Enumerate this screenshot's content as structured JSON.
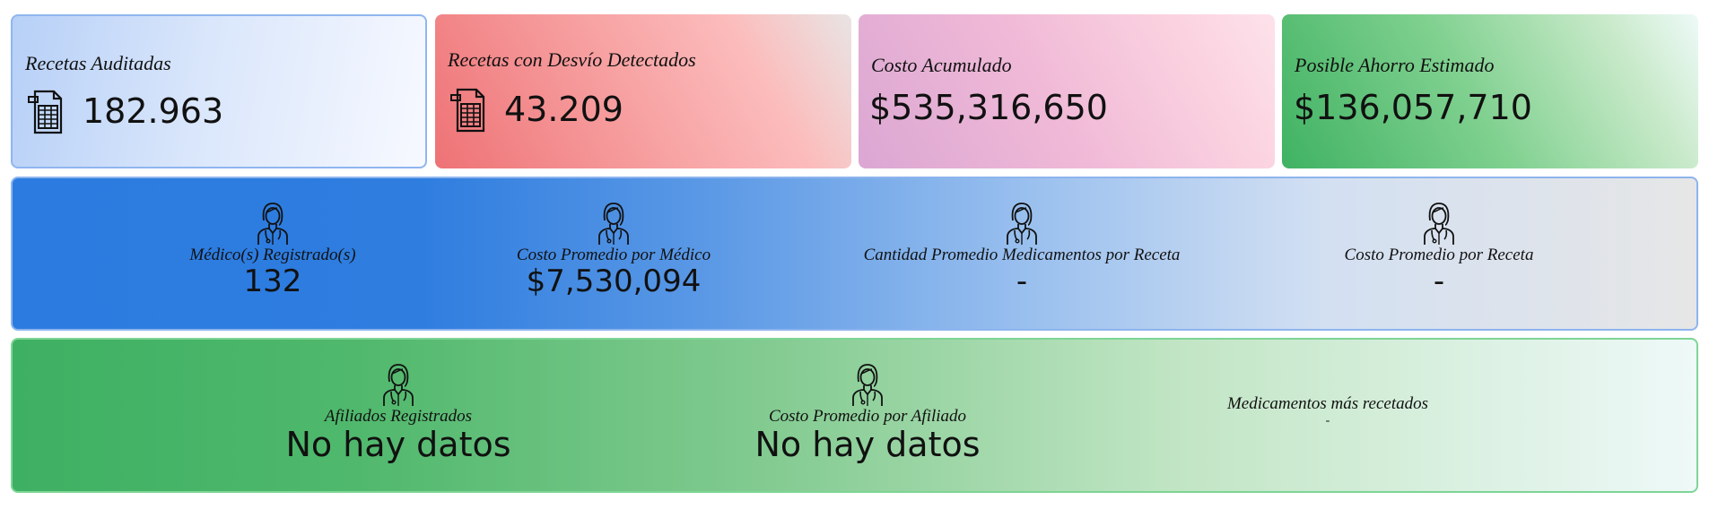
{
  "cards": [
    {
      "title": "Recetas Auditadas",
      "value": "182.963",
      "icon": "spreadsheet-doc-icon"
    },
    {
      "title": "Recetas con Desvío Detectados",
      "value": "43.209",
      "icon": "spreadsheet-doc-icon"
    },
    {
      "title": "Costo Acumulado",
      "value": "$535,316,650"
    },
    {
      "title": "Posible Ahorro Estimado",
      "value": "$136,057,710"
    }
  ],
  "doctor_stats": [
    {
      "label": "Médico(s) Registrado(s)",
      "value": "132",
      "icon": "doctor-icon"
    },
    {
      "label": "Costo Promedio por Médico",
      "value": "$7,530,094",
      "icon": "doctor-icon"
    },
    {
      "label": "Cantidad Promedio Medicamentos por Receta",
      "value": "-",
      "icon": "doctor-icon"
    },
    {
      "label": "Costo Promedio por Receta",
      "value": "-",
      "icon": "doctor-icon"
    }
  ],
  "affiliate_stats": [
    {
      "label": "Afiliados Registrados",
      "value": "No hay datos",
      "icon": "doctor-icon"
    },
    {
      "label": "Costo Promedio por Afiliado",
      "value": "No hay datos",
      "icon": "doctor-icon"
    }
  ],
  "top_meds": {
    "label": "Medicamentos más recetados",
    "value": "-"
  },
  "colors": {
    "blue_band": "#2c7be0",
    "green_band": "#3eb063",
    "red_card": "#ee7275",
    "pink_card": "#dba7d3"
  }
}
